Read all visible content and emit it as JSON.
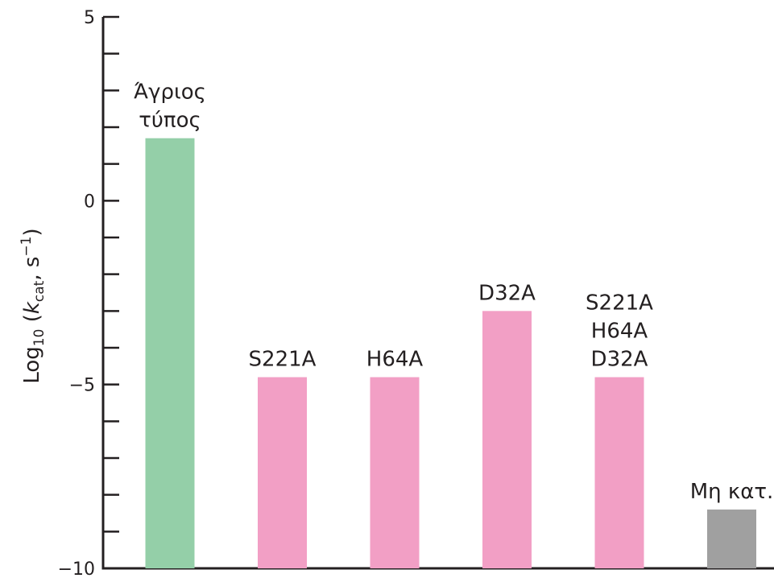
{
  "chart_data": {
    "type": "bar",
    "title": "",
    "xlabel": "",
    "ylabel": {
      "prefix": "Log",
      "sub": "10",
      "open": " (",
      "var": "k",
      "var_sub": "cat",
      "sep": ", s",
      "sup": "−1",
      "close": ")"
    },
    "ylim": [
      -10,
      5
    ],
    "yticks": [
      {
        "value": 5,
        "label": "5"
      },
      {
        "value": 0,
        "label": "0"
      },
      {
        "value": -5,
        "label": "−5"
      },
      {
        "value": -10,
        "label": "−10"
      }
    ],
    "minor_tick_step": 1,
    "categories": [
      {
        "label_lines": [
          "Άγριος",
          "τύπος"
        ],
        "value": 1.7,
        "color": "#94cfa8"
      },
      {
        "label_lines": [
          "S221A"
        ],
        "value": -4.8,
        "color": "#f29fc5"
      },
      {
        "label_lines": [
          "H64A"
        ],
        "value": -4.8,
        "color": "#f29fc5"
      },
      {
        "label_lines": [
          "D32A"
        ],
        "value": -3.0,
        "color": "#f29fc5"
      },
      {
        "label_lines": [
          "S221A",
          "H64A",
          "D32A"
        ],
        "value": -4.8,
        "color": "#f29fc5"
      },
      {
        "label_lines": [
          "Μη κατ."
        ],
        "value": -8.4,
        "color": "#a0a0a0"
      }
    ],
    "grid": false,
    "legend": "none"
  }
}
